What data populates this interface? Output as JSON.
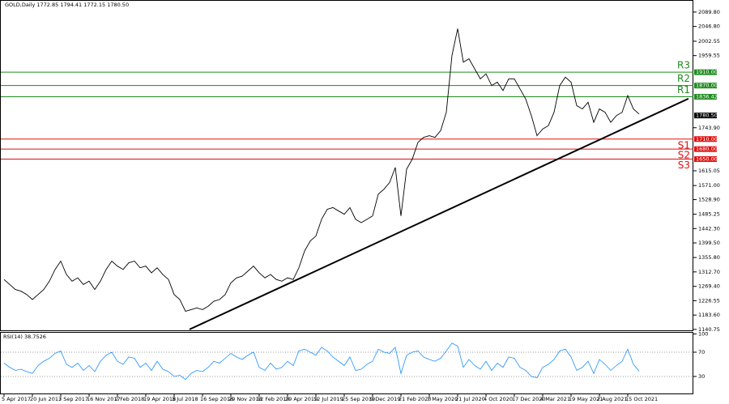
{
  "chart_data": [
    {
      "type": "line",
      "title": "GOLD,Daily  1772.85 1794.41 1772.15 1780.50",
      "color": "#000000",
      "categories": [
        "5 Apr 2017",
        null,
        null,
        null,
        null,
        "20 Jun 2017",
        null,
        null,
        null,
        null,
        "3 Sep 2017",
        null,
        null,
        null,
        null,
        "16 Nov 2017",
        null,
        null,
        null,
        null,
        "2 Feb 2018",
        null,
        null,
        null,
        null,
        "19 Apr 2018",
        null,
        null,
        null,
        null,
        "3 Jul 2018",
        null,
        null,
        null,
        null,
        "16 Sep 2018",
        null,
        null,
        null,
        null,
        "29 Nov 2018",
        null,
        null,
        null,
        null,
        "12 Feb 2019",
        null,
        null,
        null,
        null,
        "29 Apr 2019",
        null,
        null,
        null,
        null,
        "12 Jul 2019",
        null,
        null,
        null,
        null,
        "25 Sep 2019",
        null,
        null,
        null,
        null,
        "9 Dec 2019",
        null,
        null,
        null,
        null,
        "21 Feb 2020",
        null,
        null,
        null,
        null,
        "7 May 2020",
        null,
        null,
        null,
        null,
        "21 Jul 2020",
        null,
        null,
        null,
        null,
        "4 Oct 2020",
        null,
        null,
        null,
        null,
        "17 Dec 2020",
        null,
        null,
        null,
        null,
        "4 Mar 2021",
        null,
        null,
        null,
        null,
        "19 May 2021",
        null,
        null,
        null,
        null,
        "2 Aug 2021",
        null,
        null,
        null,
        null,
        "15 Oct 2021",
        null,
        null
      ],
      "values": [
        1290,
        1275,
        1260,
        1255,
        1245,
        1230,
        1245,
        1260,
        1285,
        1320,
        1345,
        1305,
        1285,
        1295,
        1275,
        1285,
        1260,
        1285,
        1320,
        1345,
        1330,
        1320,
        1340,
        1345,
        1325,
        1330,
        1310,
        1325,
        1305,
        1290,
        1245,
        1230,
        1195,
        1200,
        1205,
        1200,
        1210,
        1225,
        1230,
        1245,
        1280,
        1295,
        1300,
        1315,
        1330,
        1310,
        1295,
        1305,
        1290,
        1285,
        1295,
        1290,
        1325,
        1375,
        1405,
        1420,
        1470,
        1500,
        1505,
        1495,
        1485,
        1505,
        1470,
        1460,
        1470,
        1480,
        1545,
        1560,
        1580,
        1625,
        1480,
        1620,
        1650,
        1700,
        1715,
        1720,
        1715,
        1735,
        1790,
        1960,
        2040,
        1940,
        1950,
        1920,
        1890,
        1905,
        1870,
        1880,
        1855,
        1890,
        1890,
        1860,
        1830,
        1780,
        1720,
        1740,
        1750,
        1790,
        1870,
        1895,
        1880,
        1810,
        1800,
        1820,
        1760,
        1800,
        1790,
        1760,
        1780,
        1790,
        1840,
        1800,
        1785
      ],
      "ylim": [
        1138,
        2121
      ],
      "yticks": [
        {
          "value": 2089.8,
          "label": "2089.80"
        },
        {
          "value": 2046.8,
          "label": "2046.80"
        },
        {
          "value": 2002.55,
          "label": "2002.55"
        },
        {
          "value": 1959.55,
          "label": "1959.55"
        },
        {
          "value": 1743.9,
          "label": "1743.90"
        },
        {
          "value": 1615.05,
          "label": "1615.05"
        },
        {
          "value": 1571,
          "label": "1571.00"
        },
        {
          "value": 1528.9,
          "label": "1528.90"
        },
        {
          "value": 1485.25,
          "label": "1485.25"
        },
        {
          "value": 1442.3,
          "label": "1442.30"
        },
        {
          "value": 1399.5,
          "label": "1399.50"
        },
        {
          "value": 1355.8,
          "label": "1355.80"
        },
        {
          "value": 1312.7,
          "label": "1312.70"
        },
        {
          "value": 1269.4,
          "label": "1269.40"
        },
        {
          "value": 1226.55,
          "label": "1226.55"
        },
        {
          "value": 1183.6,
          "label": "1183.60"
        },
        {
          "value": 1140.75,
          "label": "1140.75"
        }
      ],
      "levels": [
        {
          "name": "R3",
          "value": 1910,
          "label": "1910.00",
          "color": "#1f8a1f"
        },
        {
          "name": "R2",
          "value": 1870,
          "label": "1870.00",
          "color": "#1f8a1f"
        },
        {
          "name": "R1",
          "value": 1836.42,
          "label": "1836.42",
          "color": "#1f8a1f"
        },
        {
          "name": "S1",
          "value": 1710,
          "label": "1710.00",
          "color": "#e01010"
        },
        {
          "name": "S2",
          "value": 1680,
          "label": "1680.00",
          "color": "#e01010"
        },
        {
          "name": "S3",
          "value": 1650,
          "label": "1650.00",
          "color": "#e01010"
        }
      ],
      "last_price": {
        "value": 1780.5,
        "label": "1780.50"
      },
      "trendline": {
        "x": [
          32.7,
          120.7
        ],
        "values": [
          1140.75,
          1830.8
        ],
        "color": "#000000"
      }
    },
    {
      "type": "line",
      "title": "RSI(14) 38.7526",
      "color": "#1e90ff",
      "values": [
        52,
        45,
        40,
        42,
        38,
        35,
        48,
        55,
        60,
        68,
        72,
        50,
        45,
        52,
        40,
        48,
        38,
        55,
        65,
        70,
        55,
        50,
        62,
        60,
        45,
        52,
        40,
        55,
        42,
        38,
        30,
        32,
        25,
        35,
        40,
        38,
        45,
        55,
        52,
        60,
        68,
        62,
        58,
        65,
        70,
        45,
        40,
        52,
        42,
        45,
        55,
        48,
        72,
        75,
        70,
        65,
        78,
        72,
        62,
        55,
        48,
        62,
        40,
        42,
        50,
        55,
        75,
        70,
        68,
        78,
        35,
        65,
        70,
        72,
        62,
        58,
        55,
        60,
        72,
        85,
        80,
        45,
        58,
        48,
        42,
        55,
        40,
        52,
        45,
        62,
        60,
        45,
        40,
        30,
        28,
        45,
        50,
        58,
        72,
        75,
        62,
        40,
        45,
        55,
        35,
        58,
        50,
        40,
        48,
        55,
        75,
        50,
        38.7526
      ],
      "ylim": [
        0,
        100
      ],
      "yticks": [
        100,
        70,
        30
      ]
    }
  ]
}
